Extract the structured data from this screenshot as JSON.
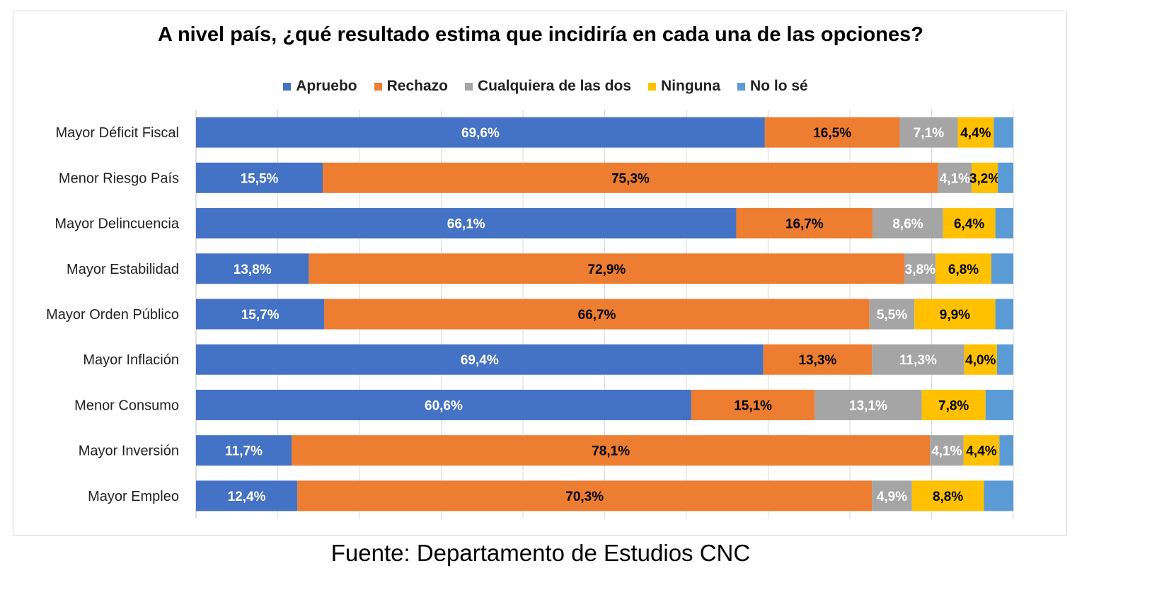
{
  "chart_data": {
    "type": "bar",
    "orientation": "horizontal",
    "stacked": true,
    "title": "A nivel país, ¿qué resultado estima que incidiría en cada una de las opciones?",
    "categories": [
      "Mayor Déficit Fiscal",
      "Menor Riesgo País",
      "Mayor Delincuencia",
      "Mayor Estabilidad",
      "Mayor Orden Público",
      "Mayor Inflación",
      "Menor Consumo",
      "Mayor Inversión",
      "Mayor Empleo"
    ],
    "series": [
      {
        "name": "Apruebo",
        "color": "#4472C4",
        "values": [
          69.6,
          15.5,
          66.1,
          13.8,
          15.7,
          69.4,
          60.6,
          11.7,
          12.4
        ],
        "labels": [
          "69,6%",
          "15,5%",
          "66,1%",
          "13,8%",
          "15,7%",
          "69,4%",
          "60,6%",
          "11,7%",
          "12,4%"
        ]
      },
      {
        "name": "Rechazo",
        "color": "#ED7D31",
        "values": [
          16.5,
          75.3,
          16.7,
          72.9,
          66.7,
          13.3,
          15.1,
          78.1,
          70.3
        ],
        "labels": [
          "16,5%",
          "75,3%",
          "16,7%",
          "72,9%",
          "66,7%",
          "13,3%",
          "15,1%",
          "78,1%",
          "70,3%"
        ]
      },
      {
        "name": "Cualquiera de las dos",
        "color": "#A5A5A5",
        "values": [
          7.1,
          4.1,
          8.6,
          3.8,
          5.5,
          11.3,
          13.1,
          4.1,
          4.9
        ],
        "labels": [
          "7,1%",
          "4,1%",
          "8,6%",
          "3,8%",
          "5,5%",
          "11,3%",
          "13,1%",
          "4,1%",
          "4,9%"
        ]
      },
      {
        "name": "Ninguna",
        "color": "#FFC000",
        "values": [
          4.4,
          3.2,
          6.4,
          6.8,
          9.9,
          4.0,
          7.8,
          4.4,
          8.8
        ],
        "labels": [
          "4,4%",
          "3,2%",
          "6,4%",
          "6,8%",
          "9,9%",
          "4,0%",
          "7,8%",
          "4,4%",
          "8,8%"
        ]
      },
      {
        "name": "No lo sé",
        "color": "#5B9BD5",
        "values": [
          2.4,
          1.9,
          2.2,
          2.7,
          2.2,
          2.0,
          3.4,
          1.7,
          3.6
        ],
        "labels": [
          "",
          "",
          "",
          "",
          "",
          "",
          "",
          "",
          ""
        ]
      }
    ],
    "xlim": [
      0,
      100
    ],
    "grid": true,
    "legend_position": "top"
  },
  "source_note": "Fuente: Departamento de Estudios CNC"
}
